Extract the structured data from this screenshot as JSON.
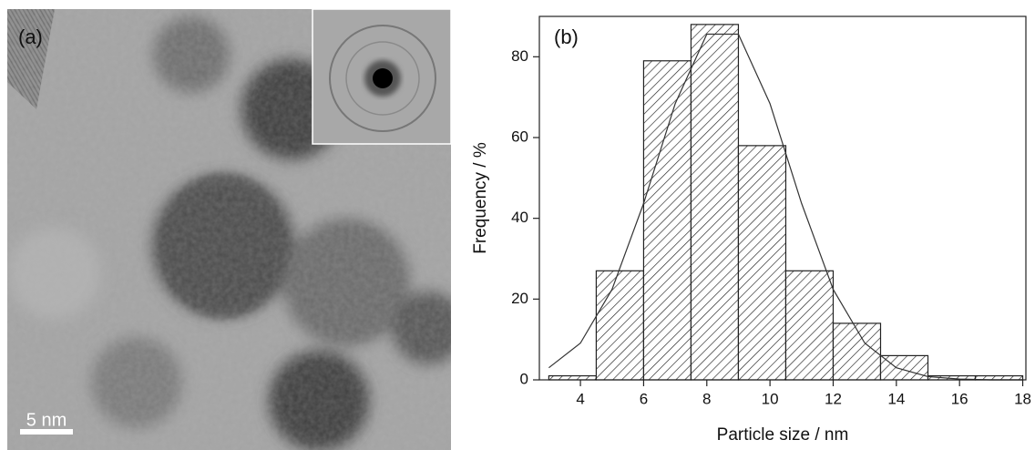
{
  "panel_a": {
    "label": "(a)",
    "scale_bar": "5 nm"
  },
  "chart_data": {
    "type": "histogram",
    "panel_label": "(b)",
    "x_label": "Particle size / nm",
    "y_label": "Frequency / %",
    "bins": [
      3,
      4.5,
      6,
      7.5,
      9,
      10.5,
      12,
      13.5,
      15,
      16.5,
      18
    ],
    "values": [
      1,
      27,
      79,
      88,
      58,
      27,
      14,
      6,
      1,
      1
    ],
    "color": "#222222",
    "fit": {
      "x": [
        3,
        4,
        5,
        6,
        7,
        8,
        9,
        10,
        11,
        12,
        13,
        14,
        15,
        16,
        17,
        18
      ],
      "values": [
        3.0,
        9.1,
        22.4,
        43.7,
        68.4,
        85.6,
        85.6,
        68.4,
        43.7,
        22.4,
        9.1,
        3.0,
        0.8,
        0.2,
        0.0,
        0.0
      ]
    },
    "xlim": [
      2.7,
      18.1
    ],
    "ylim": [
      0,
      90
    ],
    "xticks": [
      4,
      6,
      8,
      10,
      12,
      14,
      16,
      18
    ],
    "yticks": [
      0,
      20,
      40,
      60,
      80
    ]
  }
}
